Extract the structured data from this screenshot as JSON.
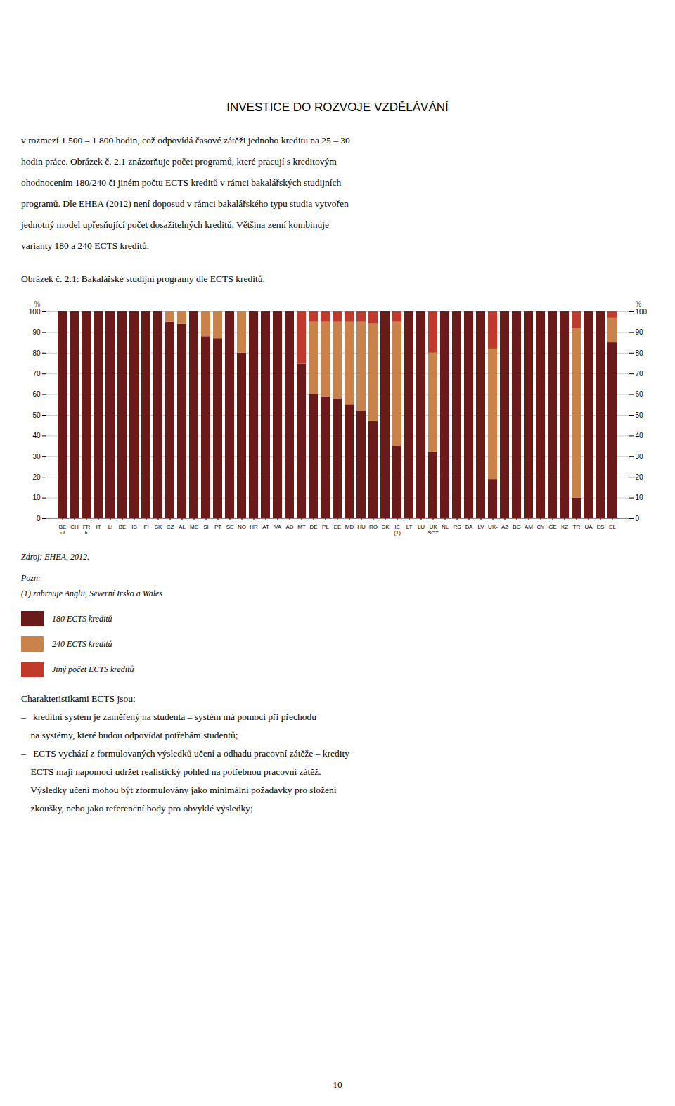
{
  "chart_data": {
    "type": "bar",
    "stacked": true,
    "title": "Obrázek č. 2.1: Bakalářské studijní programy dle ECTS kreditů.",
    "ylabel": "%",
    "y2label": "%",
    "categories": [
      "BE\nnl",
      "CH",
      "FR\nfr",
      "IT",
      "LI",
      "BE",
      "IS",
      "FI",
      "SK",
      "CZ",
      "AL",
      "ME",
      "SI",
      "PT",
      "SE",
      "NO",
      "HR",
      "AT",
      "VA",
      "AD",
      "MT",
      "DE",
      "PL",
      "EE",
      "MD",
      "HU",
      "RO",
      "DK",
      "IE\n(1)",
      "LT",
      "LU",
      "UK\nSCT",
      "NL",
      "RS",
      "BA",
      "LV",
      "UK-",
      "AZ",
      "BG",
      "AM",
      "CY",
      "GE",
      "KZ",
      "TR",
      "UA",
      "ES",
      "EL"
    ],
    "series": [
      {
        "name": "180 ECTS kreditů",
        "color": "#6B1A1A",
        "values": [
          100,
          100,
          100,
          100,
          100,
          100,
          100,
          100,
          100,
          95,
          94,
          100,
          88,
          87,
          100,
          80,
          100,
          100,
          100,
          100,
          75,
          60,
          59,
          58,
          55,
          52,
          47,
          100,
          35,
          100,
          100,
          32,
          100,
          100,
          100,
          100,
          19,
          100,
          100,
          100,
          100,
          100,
          100,
          10,
          100,
          100,
          85
        ]
      },
      {
        "name": "240 ECTS kreditů",
        "color": "#C8824A",
        "values": [
          0,
          0,
          0,
          0,
          0,
          0,
          0,
          0,
          0,
          5,
          6,
          0,
          12,
          13,
          0,
          20,
          0,
          0,
          0,
          0,
          0,
          35,
          36,
          37,
          40,
          43,
          47,
          0,
          60,
          0,
          0,
          48,
          0,
          0,
          0,
          0,
          63,
          0,
          0,
          0,
          0,
          0,
          0,
          82,
          0,
          0,
          12
        ]
      },
      {
        "name": "Jiný počet ECTS kreditů",
        "color": "#C0392B",
        "values": [
          0,
          0,
          0,
          0,
          0,
          0,
          0,
          0,
          0,
          0,
          0,
          0,
          0,
          0,
          0,
          0,
          0,
          0,
          0,
          0,
          25,
          5,
          5,
          5,
          5,
          5,
          6,
          0,
          5,
          0,
          0,
          20,
          0,
          0,
          0,
          0,
          18,
          0,
          0,
          0,
          0,
          0,
          0,
          8,
          0,
          0,
          3
        ]
      }
    ],
    "ylim": [
      0,
      100
    ],
    "yticks": [
      0,
      10,
      20,
      30,
      40,
      50,
      60,
      70,
      80,
      90,
      100
    ],
    "grid": true,
    "legend": "bottom",
    "source": "Zdroj: EHEA, 2012.",
    "notes": [
      "Pozn:",
      "(1) zahrnuje Anglii, Severní Irsko a Wales"
    ]
  },
  "page": {
    "heading": "INVESTICE DO ROZVOJE VZDĚLÁVÁNÍ",
    "body_lines": [
      "v rozmezí 1 500 – 1 800 hodin, což odpovídá časové zátěži jednoho kreditu na 25 – 30",
      "hodin práce. Obrázek č. 2.1 znázorňuje počet programů, které pracují s kreditovým",
      "ohodnocením 180/240 či jiném počtu ECTS kreditů v rámci bakalářských studijních",
      "programů. Dle EHEA (2012) není doposud v rámci bakalářského typu studia vytvořen",
      "jednotný model upřesňující počet dosažitelných kreditů. Většina zemí kombinuje",
      "varianty 180 a 240 ECTS kreditů."
    ],
    "lower_lines": [
      "Charakteristikami ECTS jsou:",
      "–   kreditní systém je zaměřený na studenta – systém má pomoci při přechodu",
      "    na systémy, které budou odpovídat potřebám studentů;",
      "–   ECTS vychází z formulovaných výsledků učení a odhadu pracovní zátěže – kredity",
      "    ECTS mají napomoci udržet realistický pohled na potřebnou pracovní zátěž.",
      "    Výsledky učení mohou být zformulovány jako minimální požadavky pro složení",
      "    zkoušky, nebo jako referenční body pro obvyklé výsledky;"
    ],
    "page_number": "10"
  }
}
